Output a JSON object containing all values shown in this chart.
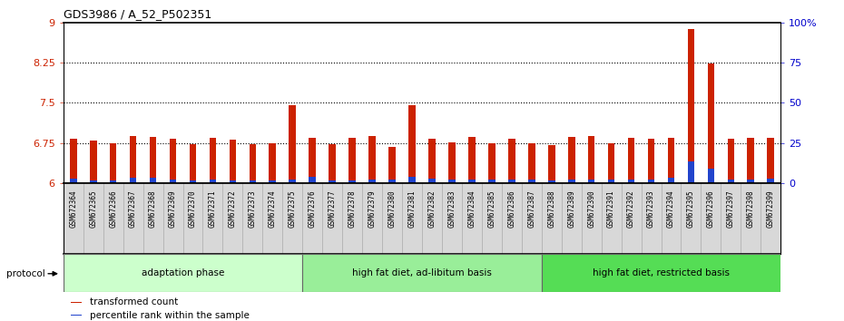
{
  "title": "GDS3986 / A_52_P502351",
  "samples": [
    "GSM672364",
    "GSM672365",
    "GSM672366",
    "GSM672367",
    "GSM672368",
    "GSM672369",
    "GSM672370",
    "GSM672371",
    "GSM672372",
    "GSM672373",
    "GSM672374",
    "GSM672375",
    "GSM672376",
    "GSM672377",
    "GSM672378",
    "GSM672379",
    "GSM672380",
    "GSM672381",
    "GSM672382",
    "GSM672383",
    "GSM672384",
    "GSM672385",
    "GSM672386",
    "GSM672387",
    "GSM672388",
    "GSM672389",
    "GSM672390",
    "GSM672391",
    "GSM672392",
    "GSM672393",
    "GSM672394",
    "GSM672395",
    "GSM672396",
    "GSM672397",
    "GSM672398",
    "GSM672399"
  ],
  "red_values": [
    6.82,
    6.8,
    6.75,
    6.87,
    6.86,
    6.83,
    6.72,
    6.84,
    6.81,
    6.73,
    6.74,
    7.46,
    6.84,
    6.73,
    6.84,
    6.87,
    6.68,
    7.45,
    6.83,
    6.76,
    6.86,
    6.75,
    6.83,
    6.74,
    6.7,
    6.86,
    6.87,
    6.75,
    6.84,
    6.82,
    6.84,
    8.88,
    8.23,
    6.83,
    6.85,
    6.84
  ],
  "blue_values": [
    0.08,
    0.05,
    0.04,
    0.09,
    0.1,
    0.06,
    0.04,
    0.06,
    0.05,
    0.04,
    0.04,
    0.06,
    0.11,
    0.05,
    0.05,
    0.07,
    0.07,
    0.12,
    0.08,
    0.06,
    0.07,
    0.06,
    0.07,
    0.06,
    0.05,
    0.07,
    0.07,
    0.07,
    0.06,
    0.06,
    0.09,
    0.4,
    0.27,
    0.07,
    0.07,
    0.08
  ],
  "y_min": 6.0,
  "y_max": 9.0,
  "y_ticks": [
    6,
    6.75,
    7.5,
    8.25,
    9
  ],
  "y_tick_labels": [
    "6",
    "6.75",
    "7.5",
    "8.25",
    "9"
  ],
  "right_y_ticks": [
    0,
    25,
    50,
    75,
    100
  ],
  "right_y_tick_labels": [
    "0",
    "25",
    "50",
    "75",
    "100%"
  ],
  "dotted_lines": [
    6.75,
    7.5,
    8.25
  ],
  "groups": [
    {
      "label": "adaptation phase",
      "start": 0,
      "end": 11,
      "color": "#ccffcc"
    },
    {
      "label": "high fat diet, ad-libitum basis",
      "start": 12,
      "end": 23,
      "color": "#99ee99"
    },
    {
      "label": "high fat diet, restricted basis",
      "start": 24,
      "end": 35,
      "color": "#55dd55"
    }
  ],
  "protocol_label": "protocol",
  "bar_color_red": "#cc2200",
  "bar_color_blue": "#2244cc",
  "bar_width": 0.35,
  "bg_color": "#ffffff",
  "axis_label_color_left": "#cc2200",
  "axis_label_color_right": "#0000cc",
  "legend_items": [
    {
      "color": "#cc2200",
      "label": "transformed count"
    },
    {
      "color": "#2244cc",
      "label": "percentile rank within the sample"
    }
  ]
}
